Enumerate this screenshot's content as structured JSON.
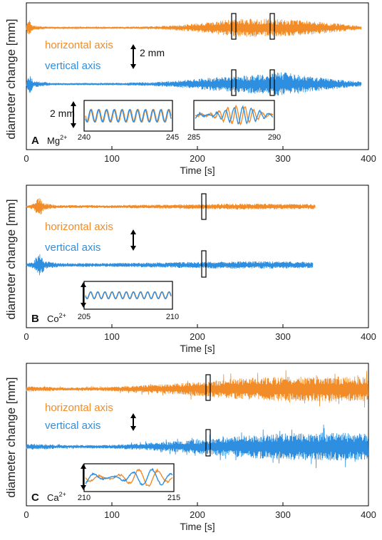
{
  "colors": {
    "horizontal": "#f28c28",
    "vertical": "#2e8fe0"
  },
  "chart_data": [
    {
      "type": "line",
      "panel": "A",
      "ion": "Mg",
      "ion_charge": "2+",
      "xlabel": "Time [s]",
      "ylabel": "diameter change [mm]",
      "xlim": [
        0,
        400
      ],
      "xticks": [
        0,
        100,
        200,
        300,
        400
      ],
      "series": [
        {
          "name": "horizontal axis",
          "x_end": 392,
          "envelope": [
            [
              0,
              0.35
            ],
            [
              3,
              1.0
            ],
            [
              8,
              0.25
            ],
            [
              30,
              0.1
            ],
            [
              60,
              0.08
            ],
            [
              100,
              0.1
            ],
            [
              140,
              0.15
            ],
            [
              170,
              0.25
            ],
            [
              200,
              0.5
            ],
            [
              240,
              0.9
            ],
            [
              260,
              1.0
            ],
            [
              290,
              0.95
            ],
            [
              320,
              0.85
            ],
            [
              350,
              0.6
            ],
            [
              375,
              0.35
            ],
            [
              392,
              0.2
            ]
          ]
        },
        {
          "name": "vertical axis",
          "x_end": 392,
          "envelope": [
            [
              0,
              0.35
            ],
            [
              3,
              1.0
            ],
            [
              8,
              0.3
            ],
            [
              30,
              0.1
            ],
            [
              60,
              0.08
            ],
            [
              100,
              0.1
            ],
            [
              140,
              0.15
            ],
            [
              170,
              0.25
            ],
            [
              200,
              0.45
            ],
            [
              240,
              0.65
            ],
            [
              270,
              0.8
            ],
            [
              300,
              1.0
            ],
            [
              320,
              0.75
            ],
            [
              350,
              0.5
            ],
            [
              375,
              0.3
            ],
            [
              392,
              0.2
            ]
          ]
        }
      ],
      "scale_bar": "2 mm",
      "highlight_windows": [
        [
          240,
          245
        ],
        [
          285,
          290
        ]
      ],
      "insets": [
        {
          "x_range": [
            240,
            245
          ],
          "tick_labels": [
            "240",
            "245"
          ],
          "scale_bar": "2 mm"
        },
        {
          "x_range": [
            285,
            290
          ],
          "tick_labels": [
            "285",
            "290"
          ]
        }
      ]
    },
    {
      "type": "line",
      "panel": "B",
      "ion": "Co",
      "ion_charge": "2+",
      "xlabel": "Time [s]",
      "ylabel": "diameter change [mm]",
      "xlim": [
        0,
        400
      ],
      "xticks": [
        0,
        100,
        200,
        300,
        400
      ],
      "series": [
        {
          "name": "horizontal axis",
          "x_end": 338,
          "envelope": [
            [
              0,
              0.1
            ],
            [
              8,
              0.3
            ],
            [
              15,
              1.0
            ],
            [
              22,
              0.3
            ],
            [
              40,
              0.15
            ],
            [
              100,
              0.15
            ],
            [
              150,
              0.2
            ],
            [
              200,
              0.25
            ],
            [
              250,
              0.3
            ],
            [
              300,
              0.28
            ],
            [
              338,
              0.25
            ]
          ]
        },
        {
          "name": "vertical axis",
          "x_end": 335,
          "envelope": [
            [
              0,
              0.1
            ],
            [
              8,
              0.3
            ],
            [
              15,
              1.0
            ],
            [
              22,
              0.3
            ],
            [
              40,
              0.15
            ],
            [
              100,
              0.15
            ],
            [
              150,
              0.2
            ],
            [
              200,
              0.25
            ],
            [
              250,
              0.3
            ],
            [
              300,
              0.28
            ],
            [
              335,
              0.25
            ]
          ]
        }
      ],
      "highlight_windows": [
        [
          205,
          210
        ]
      ],
      "insets": [
        {
          "x_range": [
            205,
            210
          ],
          "tick_labels": [
            "205",
            "210"
          ]
        }
      ]
    },
    {
      "type": "line",
      "panel": "C",
      "ion": "Ca",
      "ion_charge": "2+",
      "xlabel": "Time [s]",
      "ylabel": "diameter change [mm]",
      "xlim": [
        0,
        400
      ],
      "xticks": [
        0,
        100,
        200,
        300,
        400
      ],
      "series": [
        {
          "name": "horizontal axis",
          "x_end": 400,
          "envelope": [
            [
              0,
              0.2
            ],
            [
              50,
              0.1
            ],
            [
              100,
              0.15
            ],
            [
              150,
              0.3
            ],
            [
              200,
              0.5
            ],
            [
              250,
              0.75
            ],
            [
              300,
              0.85
            ],
            [
              350,
              0.9
            ],
            [
              400,
              0.85
            ]
          ]
        },
        {
          "name": "vertical axis",
          "x_end": 400,
          "envelope": [
            [
              0,
              0.2
            ],
            [
              50,
              0.1
            ],
            [
              100,
              0.12
            ],
            [
              150,
              0.25
            ],
            [
              200,
              0.45
            ],
            [
              250,
              0.7
            ],
            [
              300,
              0.85
            ],
            [
              350,
              0.9
            ],
            [
              400,
              0.85
            ]
          ]
        }
      ],
      "highlight_windows": [
        [
          210,
          215
        ]
      ],
      "insets": [
        {
          "x_range": [
            210,
            215
          ],
          "tick_labels": [
            "210",
            "215"
          ]
        }
      ]
    }
  ]
}
